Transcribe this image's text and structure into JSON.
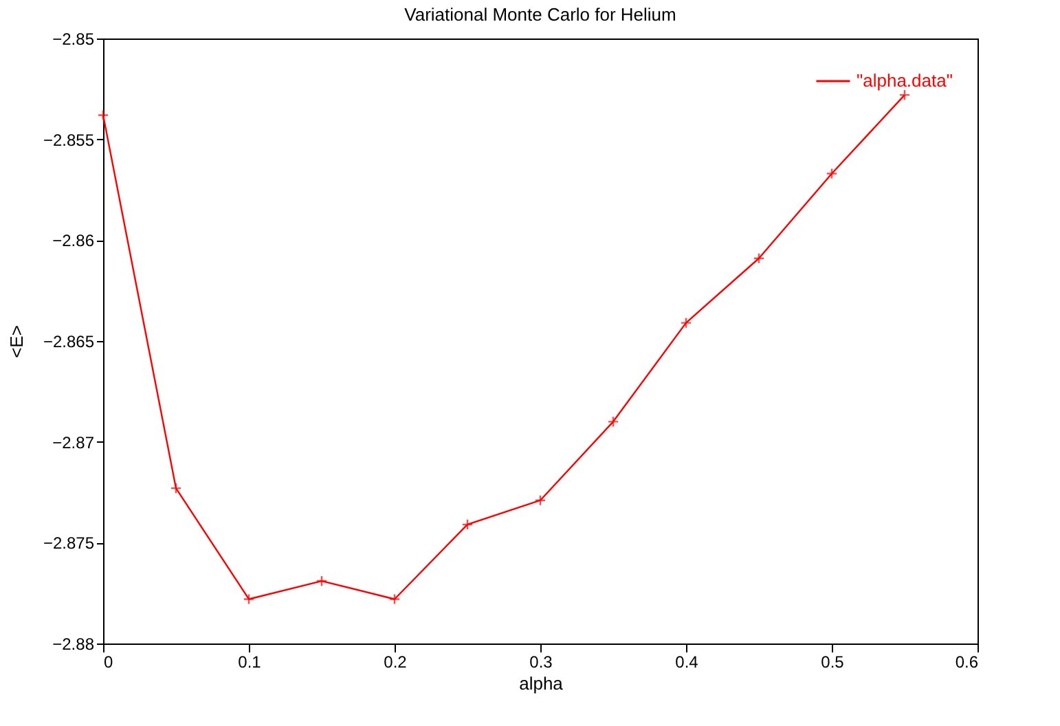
{
  "chart_data": {
    "type": "line",
    "title": "Variational Monte Carlo for Helium",
    "xlabel": "alpha",
    "ylabel": "<E>",
    "x": [
      0,
      0.05,
      0.1,
      0.15,
      0.2,
      0.25,
      0.3,
      0.35,
      0.4,
      0.45,
      0.5,
      0.55
    ],
    "series": [
      {
        "name": "\"alpha.data\"",
        "color": "#ff0000",
        "values": [
          -2.8538,
          -2.8723,
          -2.8778,
          -2.8769,
          -2.8778,
          -2.8741,
          -2.8729,
          -2.869,
          -2.8641,
          -2.8609,
          -2.8567,
          -2.8528
        ]
      }
    ],
    "xlim": [
      0,
      0.6
    ],
    "xticks": [
      0,
      0.1,
      0.2,
      0.3,
      0.4,
      0.5,
      0.6
    ],
    "ylim": [
      -2.88,
      -2.85
    ],
    "yticks": [
      -2.88,
      -2.875,
      -2.87,
      -2.865,
      -2.86,
      -2.855,
      -2.85
    ],
    "grid": false,
    "legend": "top right",
    "marker": "cross",
    "line_style": "solid"
  }
}
